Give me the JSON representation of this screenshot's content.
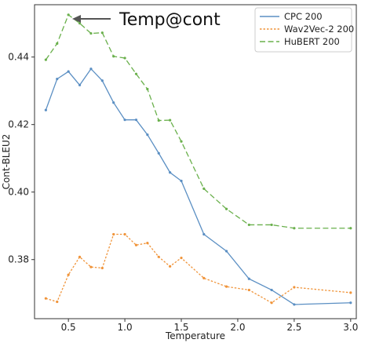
{
  "chart_data": {
    "type": "line",
    "xlabel": "Temperature",
    "ylabel": "Cont-BLEU2",
    "xlim": [
      0.2,
      3.05
    ],
    "ylim": [
      0.3625,
      0.4555
    ],
    "x_ticks": [
      0.5,
      1.0,
      1.5,
      2.0,
      2.5,
      3.0
    ],
    "x_tick_labels": [
      "0.5",
      "1.0",
      "1.5",
      "2.0",
      "2.5",
      "3.0"
    ],
    "y_ticks": [
      0.38,
      0.4,
      0.42,
      0.44
    ],
    "y_tick_labels": [
      "0.38",
      "0.40",
      "0.42",
      "0.44"
    ],
    "grid": false,
    "legend_position": "top-right",
    "annotation": {
      "text": "Temp@cont",
      "arrow_to": {
        "x": 0.5,
        "y": 0.4525
      }
    },
    "series": [
      {
        "name": "CPC 200",
        "color": "#5b8fc3",
        "dash": "solid",
        "x": [
          0.3,
          0.4,
          0.5,
          0.6,
          0.7,
          0.8,
          0.9,
          1.0,
          1.1,
          1.2,
          1.3,
          1.4,
          1.5,
          1.7,
          1.9,
          2.1,
          2.3,
          2.5,
          3.0
        ],
        "y": [
          0.4243,
          0.4335,
          0.4357,
          0.4317,
          0.4365,
          0.433,
          0.4265,
          0.4214,
          0.4214,
          0.417,
          0.4115,
          0.4058,
          0.4033,
          0.3875,
          0.3825,
          0.3743,
          0.371,
          0.3667,
          0.3672
        ]
      },
      {
        "name": "Wav2Vec-2 200",
        "color": "#f0943a",
        "dash": "dotted",
        "x": [
          0.3,
          0.4,
          0.5,
          0.6,
          0.7,
          0.8,
          0.9,
          1.0,
          1.1,
          1.2,
          1.3,
          1.4,
          1.5,
          1.7,
          1.9,
          2.1,
          2.3,
          2.5,
          3.0
        ],
        "y": [
          0.3685,
          0.3675,
          0.3755,
          0.3808,
          0.3778,
          0.3775,
          0.3875,
          0.3875,
          0.3843,
          0.3849,
          0.3808,
          0.378,
          0.3805,
          0.3745,
          0.372,
          0.371,
          0.3672,
          0.3718,
          0.3702
        ]
      },
      {
        "name": "HuBERT 200",
        "color": "#6ab04c",
        "dash": "dashed",
        "x": [
          0.3,
          0.4,
          0.5,
          0.6,
          0.7,
          0.8,
          0.9,
          1.0,
          1.1,
          1.2,
          1.3,
          1.4,
          1.5,
          1.7,
          1.9,
          2.1,
          2.3,
          2.5,
          3.0
        ],
        "y": [
          0.4392,
          0.444,
          0.4525,
          0.45,
          0.447,
          0.4472,
          0.4402,
          0.4397,
          0.435,
          0.4305,
          0.4212,
          0.4213,
          0.415,
          0.401,
          0.395,
          0.3903,
          0.3903,
          0.3893,
          0.3893
        ]
      }
    ]
  }
}
